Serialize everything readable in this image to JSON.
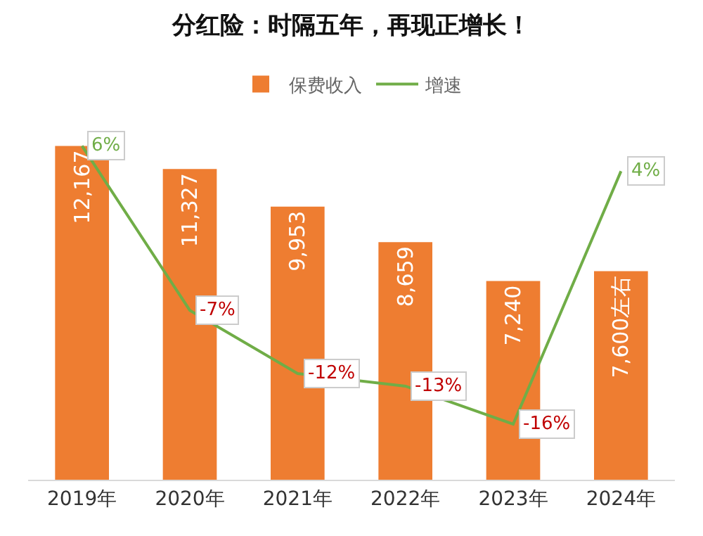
{
  "chart_data": {
    "type": "bar",
    "title": "分红险：时隔五年，再现正增长！",
    "categories": [
      "2019年",
      "2020年",
      "2021年",
      "2022年",
      "2023年",
      "2024年"
    ],
    "series": [
      {
        "name": "保费收入",
        "color": "#ee7d31",
        "values": [
          12167,
          11327,
          9953,
          8659,
          7240,
          7600
        ],
        "value_labels": [
          "12,167",
          "11,327",
          "9,953",
          "8,659",
          "7,240",
          "7,600左右"
        ]
      },
      {
        "name": "增速",
        "type": "line",
        "axis": "y2",
        "color": "#70ad47",
        "values": [
          6,
          -7,
          -12,
          -13,
          -16,
          4
        ],
        "value_labels": [
          "6%",
          "-7%",
          "-12%",
          "-13%",
          "-16%",
          "4%"
        ]
      }
    ],
    "legend": "top",
    "grid": false,
    "tick_labels": "x",
    "marker": "none",
    "line_style": "solid"
  }
}
